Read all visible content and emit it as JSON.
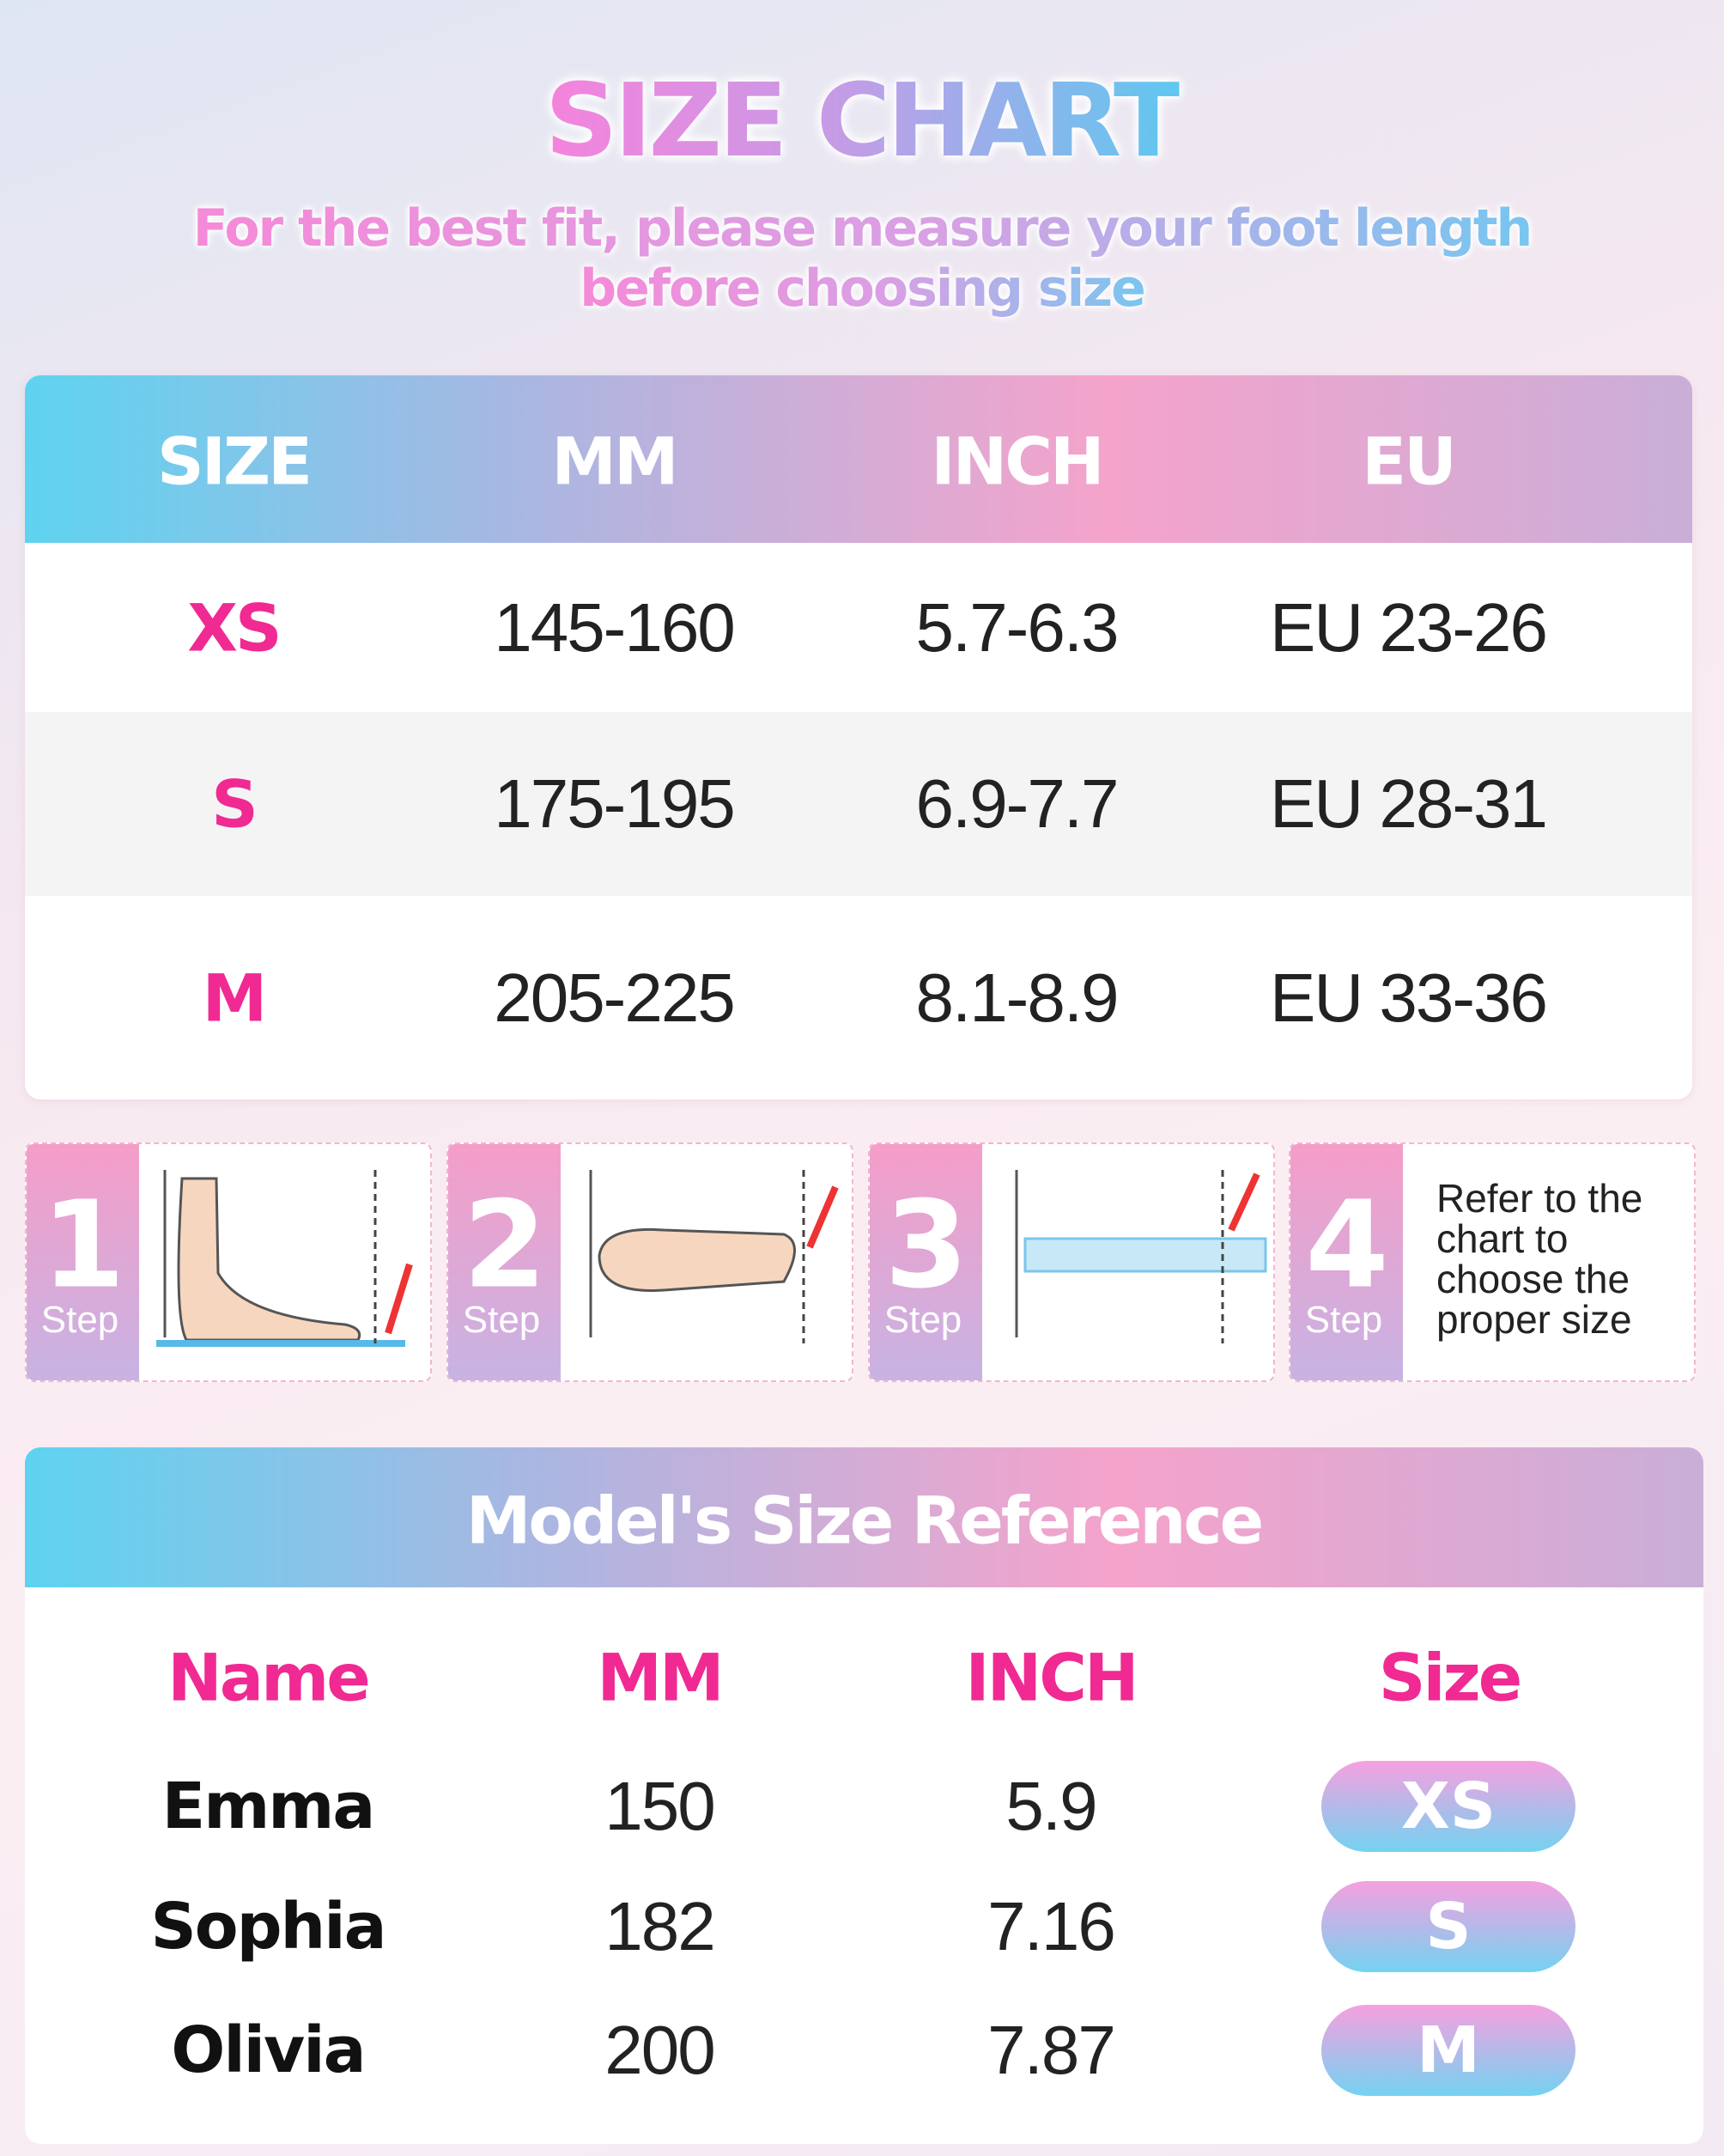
{
  "header": {
    "title": "SIZE CHART",
    "subtitle_lines": [
      "For the best fit, please measure your foot length",
      "before choosing size"
    ]
  },
  "size_table": {
    "columns": [
      "SIZE",
      "MM",
      "INCH",
      "EU"
    ],
    "rows": [
      [
        "XS",
        "145-160",
        "5.7-6.3",
        "EU 23-26"
      ],
      [
        "S",
        "175-195",
        "6.9-7.7",
        "EU 28-31"
      ],
      [
        "M",
        "205-225",
        "8.1-8.9",
        "EU 33-36"
      ]
    ]
  },
  "steps": [
    {
      "number": "1",
      "label": "Step"
    },
    {
      "number": "2",
      "label": "Step"
    },
    {
      "number": "3",
      "label": "Step"
    },
    {
      "number": "4",
      "label": "Step",
      "text": "Refer to the chart to choose the proper size"
    }
  ],
  "model_reference": {
    "title": "Model's Size Reference",
    "columns": [
      "Name",
      "MM",
      "INCH",
      "Size"
    ],
    "rows": [
      [
        "Emma",
        "150",
        "5.9",
        "XS"
      ],
      [
        "Sophia",
        "182",
        "7.16",
        "S"
      ],
      [
        "Olivia",
        "200",
        "7.87",
        "M"
      ]
    ]
  }
}
